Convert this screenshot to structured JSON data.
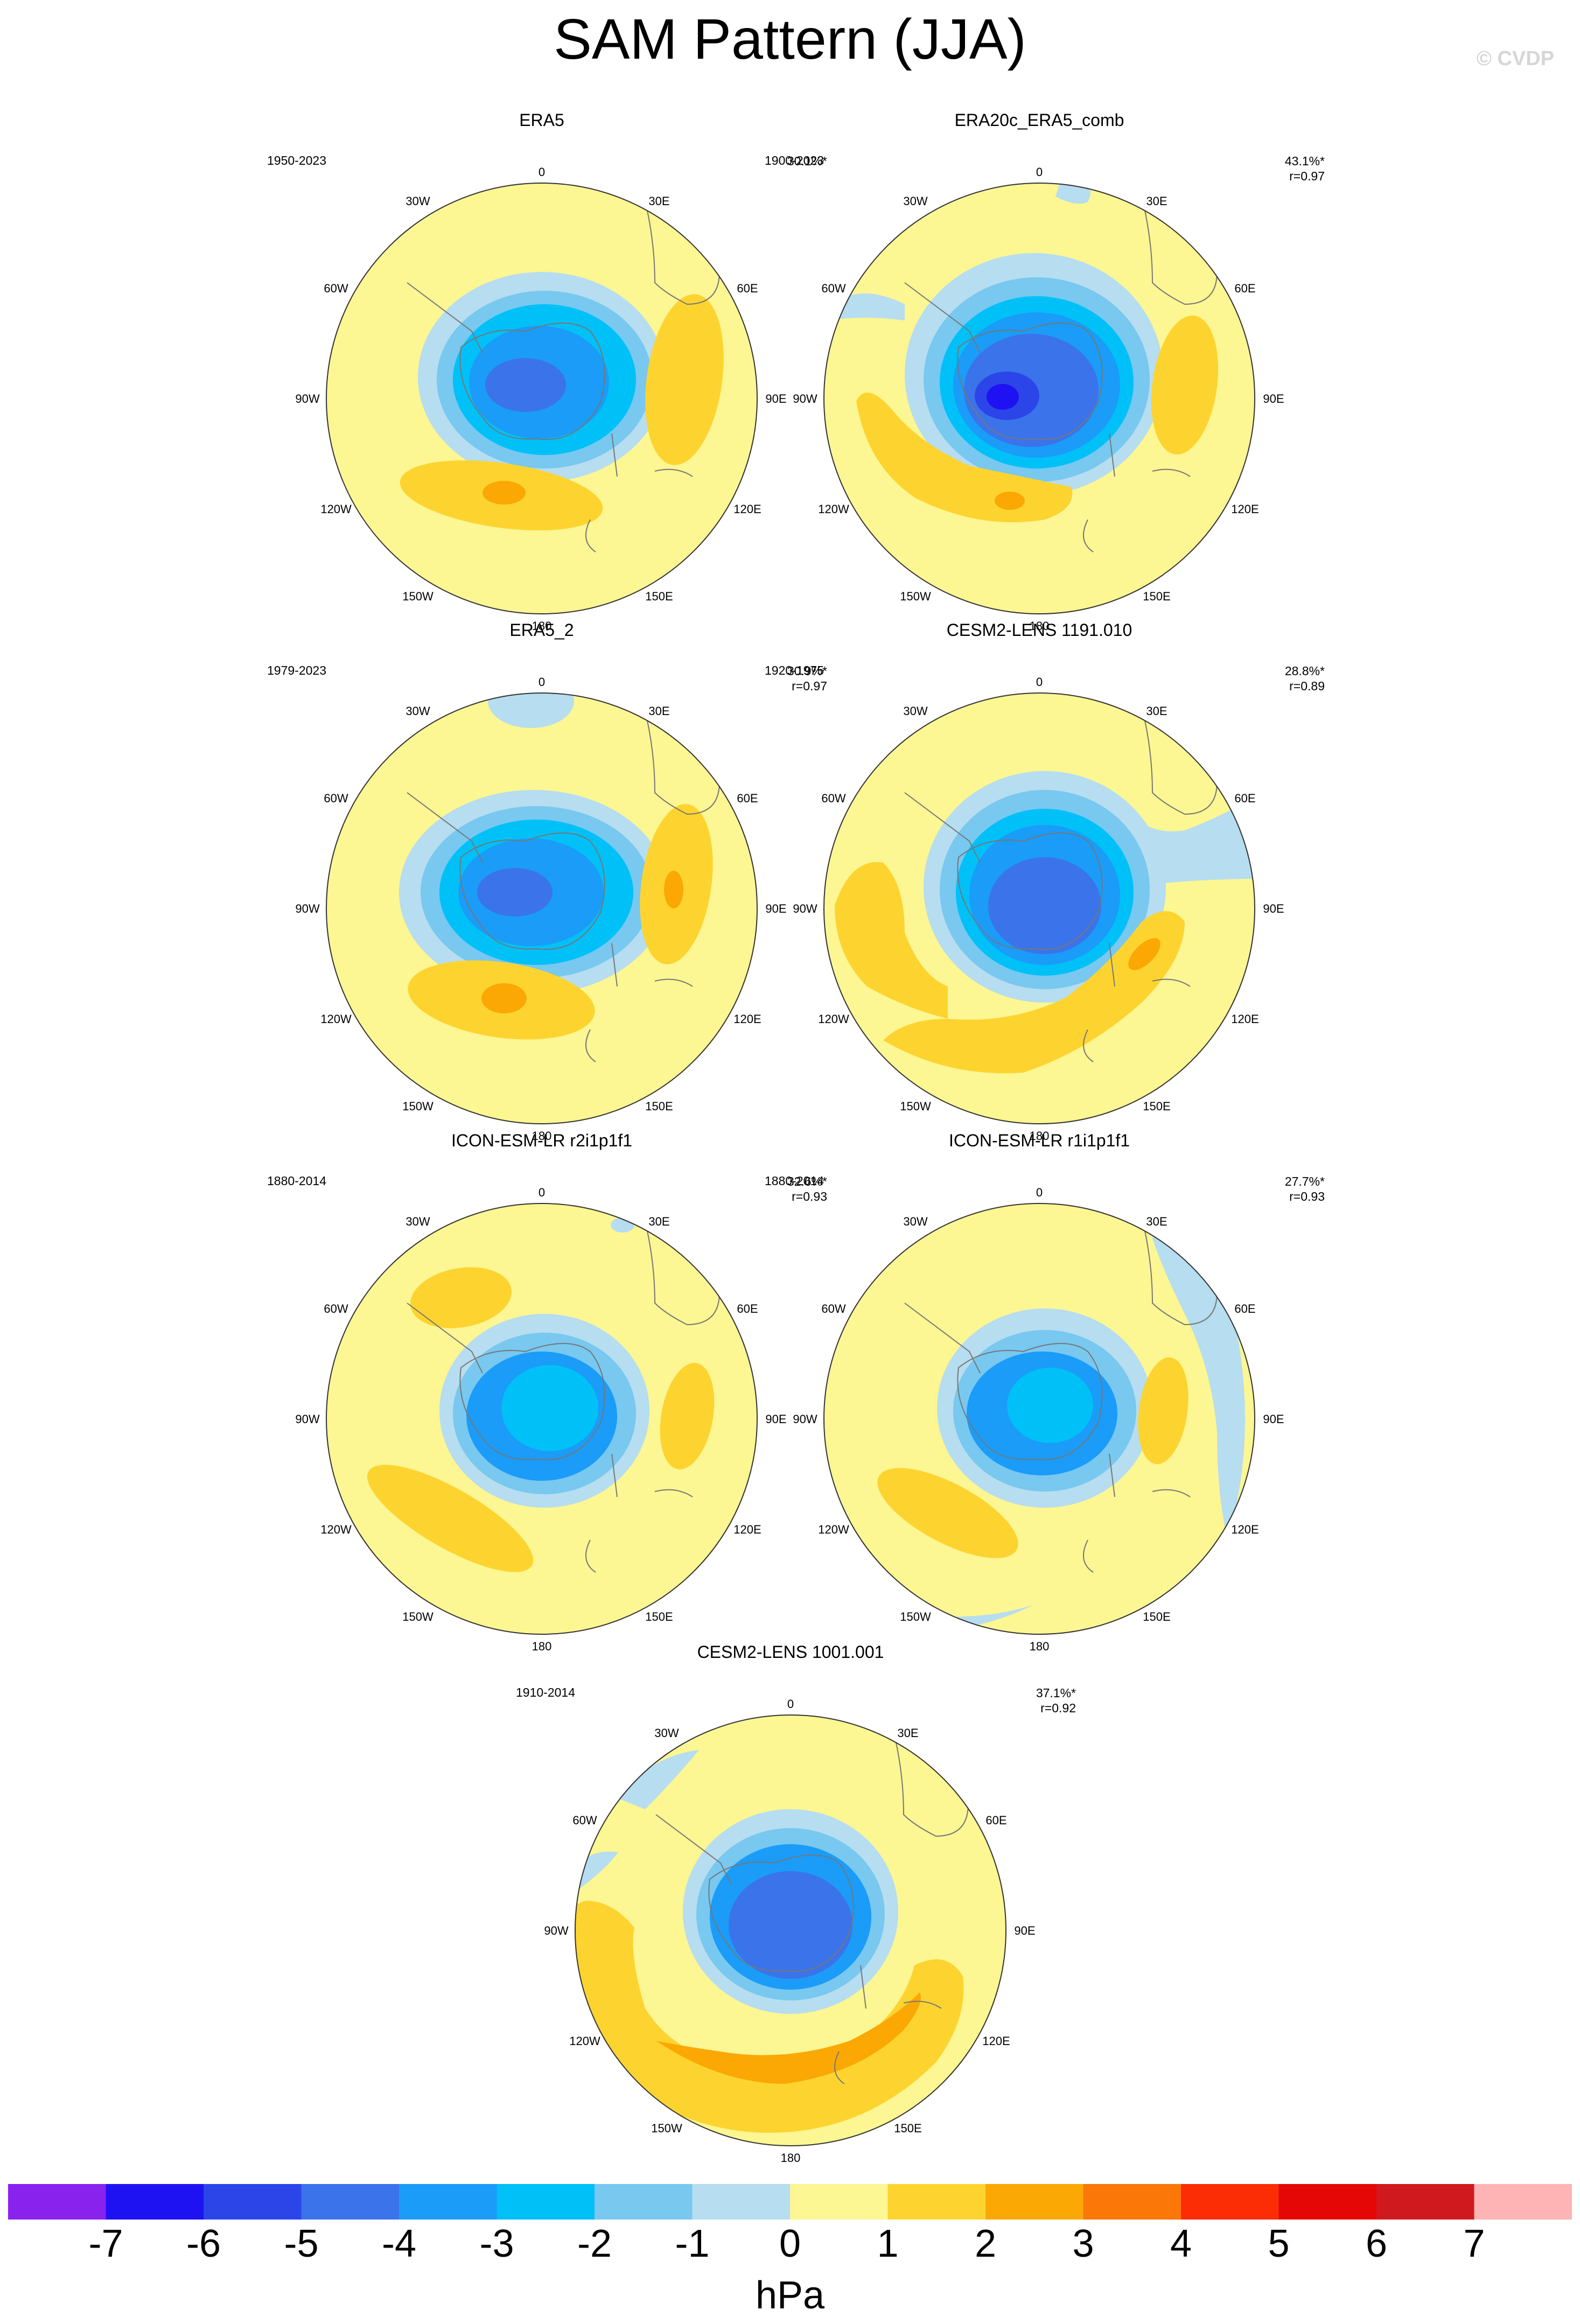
{
  "header": {
    "title": "SAM Pattern (JJA)",
    "watermark": "© CVDP"
  },
  "lon_labels": [
    "0",
    "30E",
    "60E",
    "90E",
    "120E",
    "150E",
    "180",
    "150W",
    "120W",
    "90W",
    "60W",
    "30W"
  ],
  "panels": [
    {
      "title": "ERA5",
      "period": "1950-2023",
      "variance": "30.1%*",
      "corr": ""
    },
    {
      "title": "ERA20c_ERA5_comb",
      "period": "1900-2023",
      "variance": "43.1%*",
      "corr": "r=0.97"
    },
    {
      "title": "ERA5_2",
      "period": "1979-2023",
      "variance": "30.9%*",
      "corr": "r=0.97"
    },
    {
      "title": "CESM2-LENS 1191.010",
      "period": "1920-1975",
      "variance": "28.8%*",
      "corr": "r=0.89"
    },
    {
      "title": "ICON-ESM-LR r2i1p1f1",
      "period": "1880-2014",
      "variance": "32.6%*",
      "corr": "r=0.93"
    },
    {
      "title": "ICON-ESM-LR r1i1p1f1",
      "period": "1880-2014",
      "variance": "27.7%*",
      "corr": "r=0.93"
    },
    {
      "title": "CESM2-LENS 1001.001",
      "period": "1910-2014",
      "variance": "37.1%*",
      "corr": "r=0.92"
    }
  ],
  "colorbar": {
    "unit": "hPa",
    "labels": [
      "-7",
      "-6",
      "-5",
      "-4",
      "-3",
      "-2",
      "-1",
      "0",
      "1",
      "2",
      "3",
      "4",
      "5",
      "6",
      "7"
    ],
    "colors": [
      "#8a22ee",
      "#1f12f2",
      "#2b45e9",
      "#3b73ea",
      "#1a9cf8",
      "#00c0f8",
      "#78c8f0",
      "#b6ddf0",
      "#fcf693",
      "#fdd42f",
      "#fba804",
      "#fb7708",
      "#fc2c04",
      "#e50606",
      "#d0191e",
      "#feb4b4"
    ]
  },
  "palette": {
    "n5": "#2b45e9",
    "n4": "#3b73ea",
    "n3": "#1a9cf8",
    "n2": "#00c0f8",
    "n1": "#78c8f0",
    "n0": "#b6ddf0",
    "p0": "#fcf693",
    "p1": "#fdd42f",
    "p2": "#fba804",
    "p3": "#fb7708",
    "coast": "#777777"
  }
}
